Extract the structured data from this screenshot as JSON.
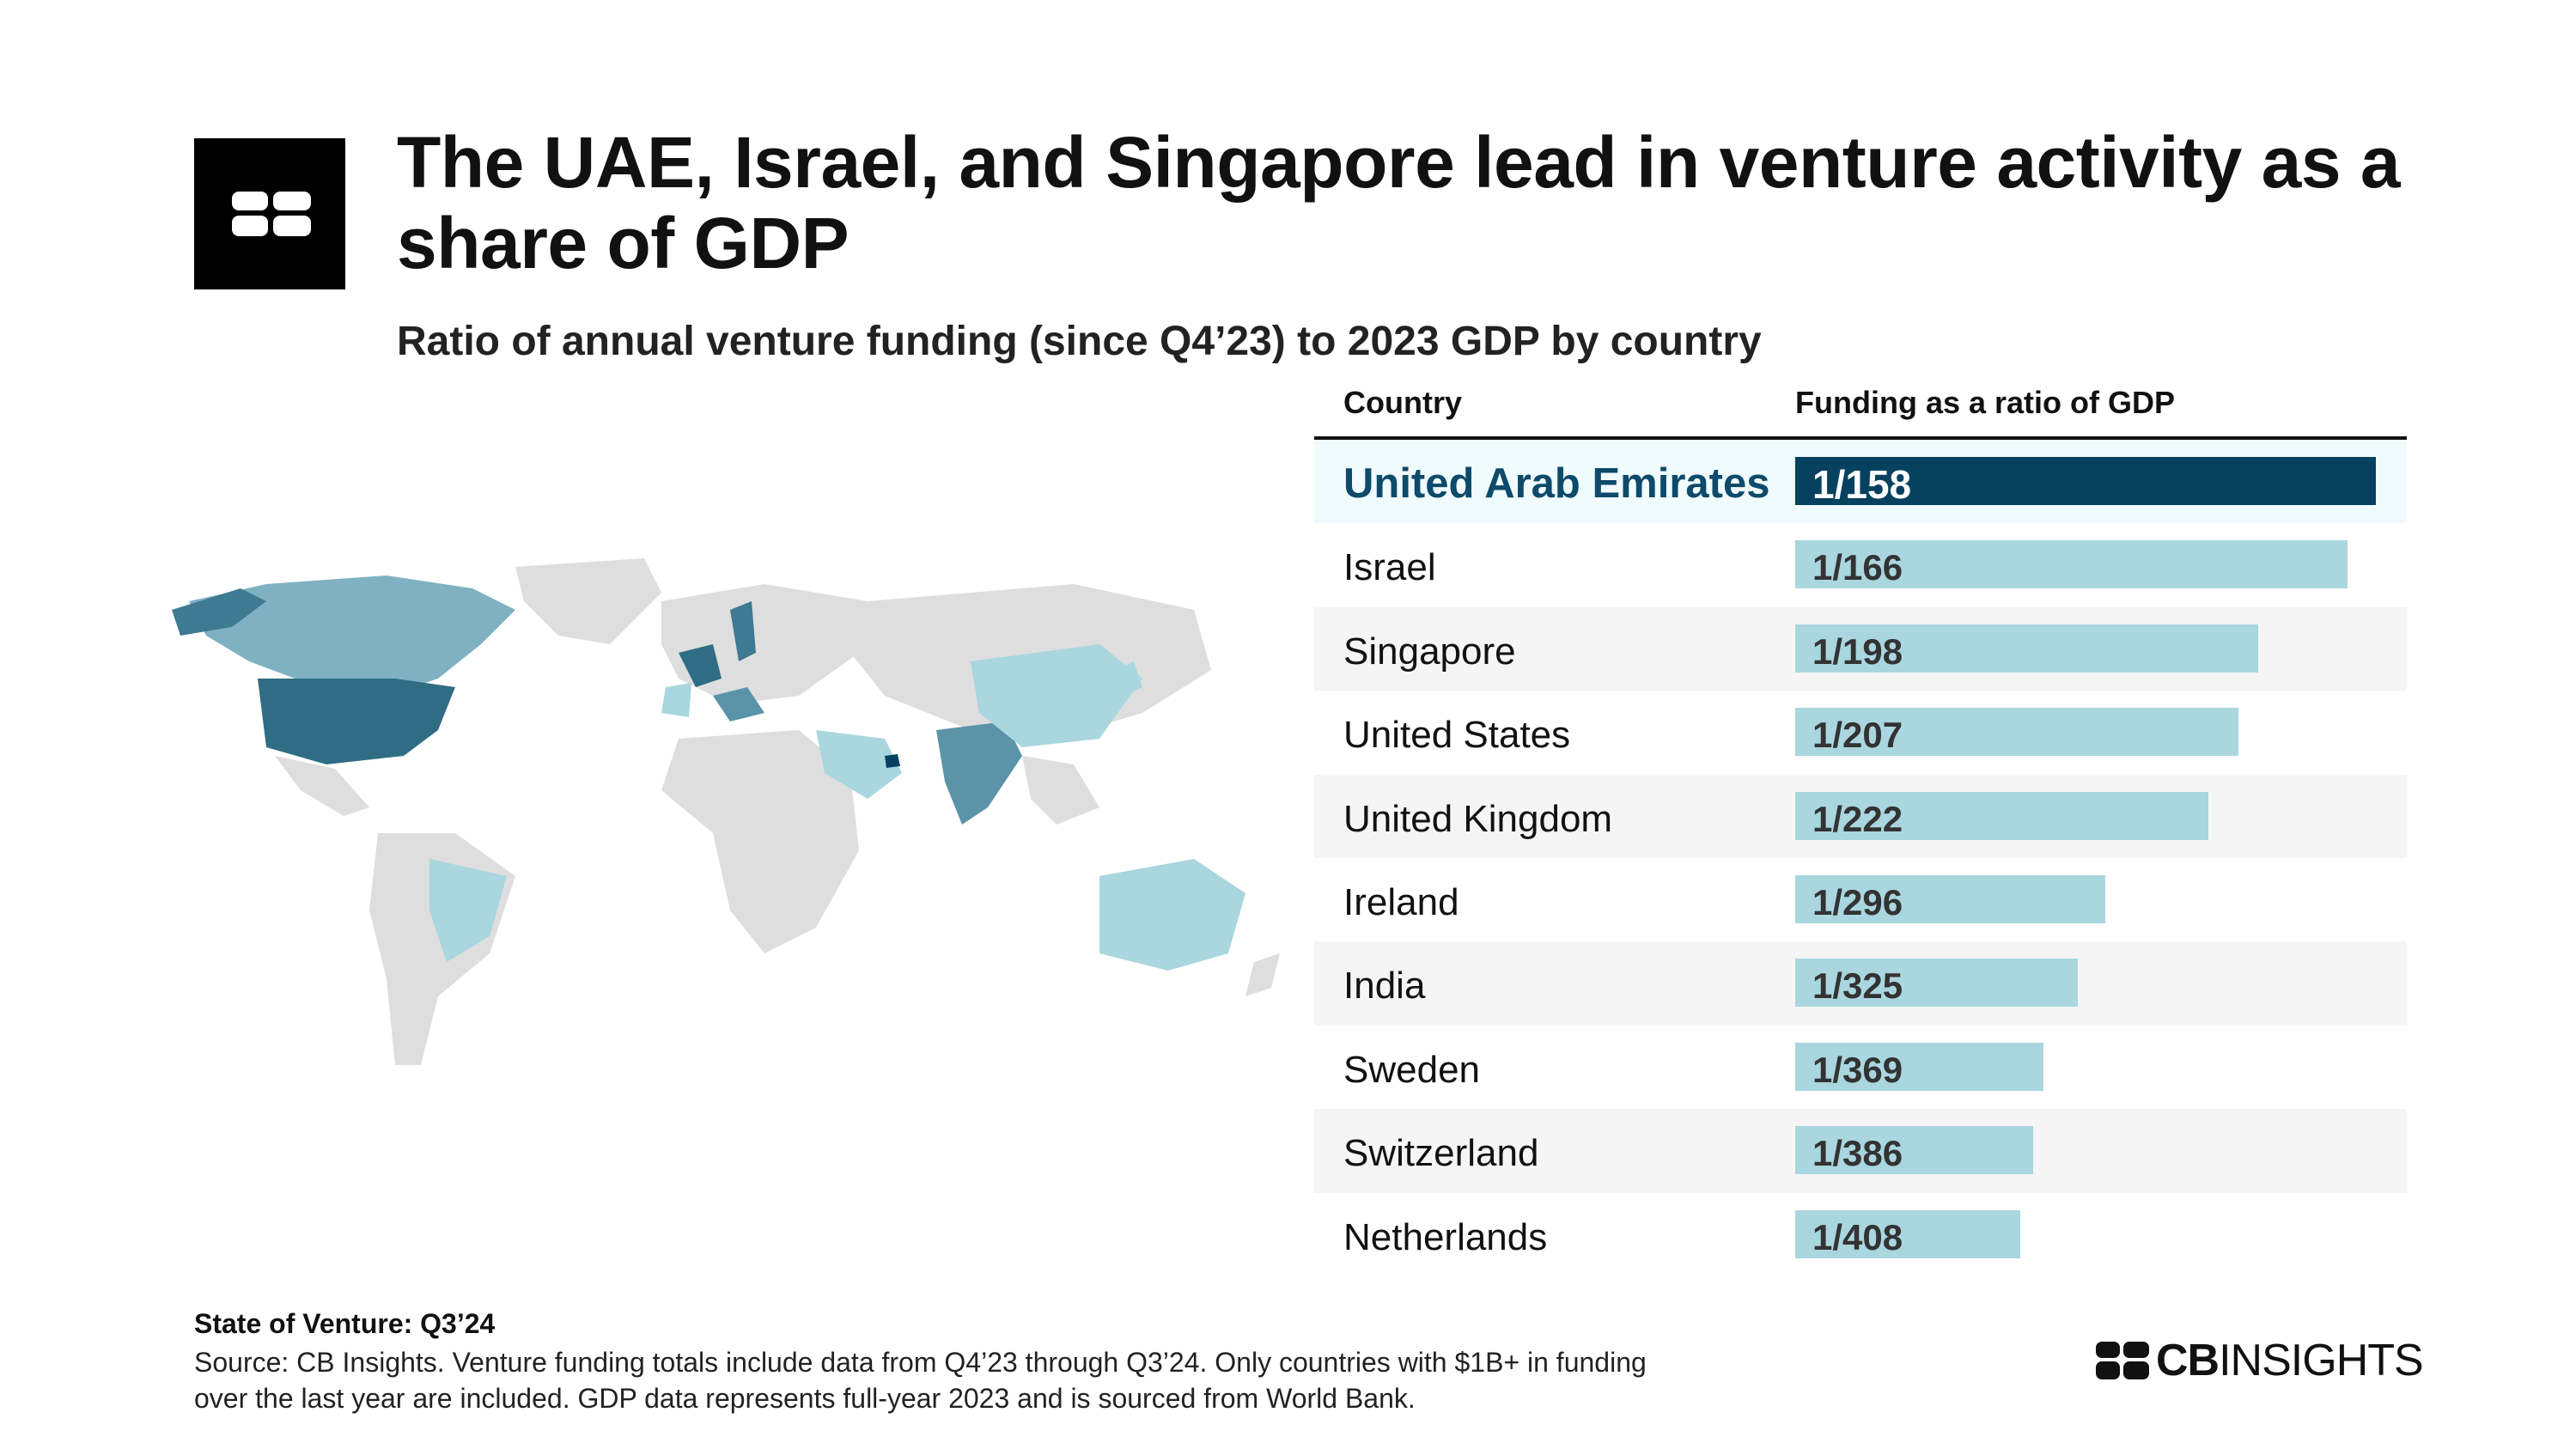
{
  "title": "The UAE, Israel, and Singapore lead in venture activity as a share of GDP",
  "subtitle": "Ratio of annual venture funding (since Q4’23) to 2023 GDP by country",
  "table": {
    "col_country": "Country",
    "col_ratio": "Funding as a ratio of GDP"
  },
  "chart_data": {
    "type": "bar",
    "title": "The UAE, Israel, and Singapore lead in venture activity as a share of GDP",
    "subtitle": "Ratio of annual venture funding (since Q4’23) to 2023 GDP by country",
    "orientation": "horizontal",
    "categories": [
      "United Arab Emirates",
      "Israel",
      "Singapore",
      "United States",
      "United Kingdom",
      "Ireland",
      "India",
      "Sweden",
      "Switzerland",
      "Netherlands"
    ],
    "labels": [
      "1/158",
      "1/166",
      "1/198",
      "1/207",
      "1/222",
      "1/296",
      "1/325",
      "1/369",
      "1/386",
      "1/408"
    ],
    "values": [
      0.006329,
      0.006024,
      0.005051,
      0.004831,
      0.004505,
      0.003378,
      0.003077,
      0.00271,
      0.002591,
      0.002451
    ],
    "highlight": "United Arab Emirates"
  },
  "colors": {
    "highlight_bar": "#06425f",
    "bar": "#a9d6df",
    "highlight_text": "#0d4a6b",
    "map_land": "#e0e0e0"
  },
  "footer": {
    "title": "State of Venture: Q3’24",
    "source_line1": "Source: CB Insights. Venture funding totals include data from Q4’23 through Q3’24. Only countries with $1B+ in funding",
    "source_line2": "over the last year are included. GDP data represents full-year 2023 and is sourced from World Bank."
  },
  "brand": {
    "bold": "CB",
    "light": "INSIGHTS"
  },
  "icons": {
    "logo": "cb-insights-logo-icon",
    "map": "world-map-icon"
  }
}
